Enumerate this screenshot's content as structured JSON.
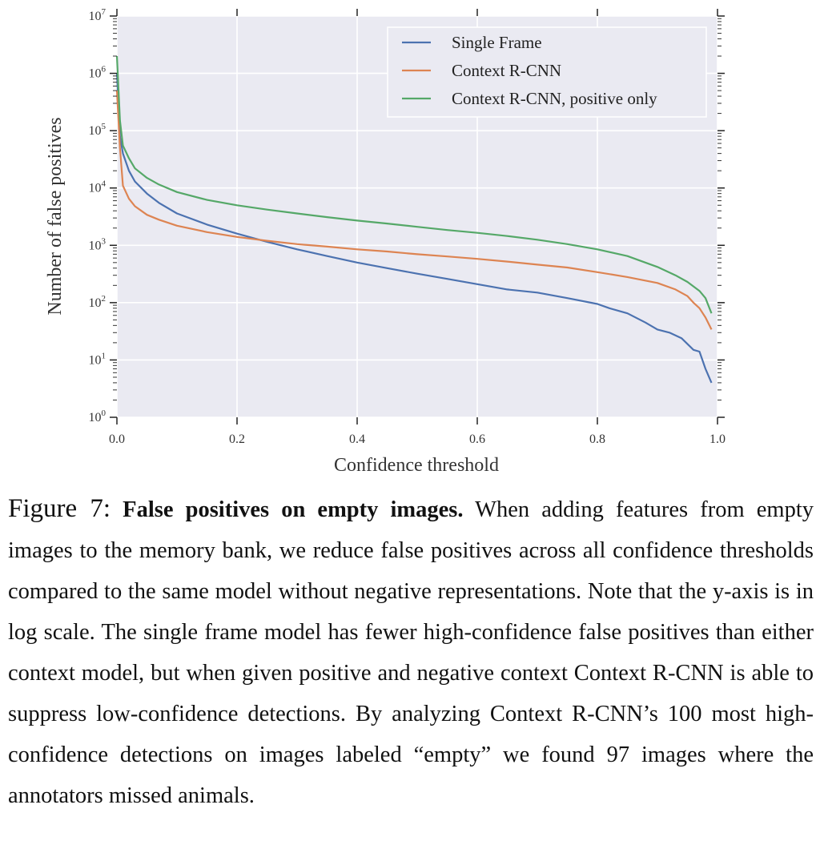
{
  "chart_data": {
    "type": "line",
    "title": "",
    "xlabel": "Confidence threshold",
    "ylabel": "Number of false positives",
    "xlim": [
      0.0,
      1.0
    ],
    "ylim": [
      1,
      10000000
    ],
    "yscale": "log",
    "grid": true,
    "legend_position": "top-right",
    "x_ticks": [
      0.0,
      0.2,
      0.4,
      0.6,
      0.8,
      1.0
    ],
    "x_tick_labels": [
      "0.0",
      "0.2",
      "0.4",
      "0.6",
      "0.8",
      "1.0"
    ],
    "y_ticks": [
      1,
      10,
      100,
      1000,
      10000,
      100000,
      1000000,
      10000000
    ],
    "y_tick_bases": [
      "10",
      "10",
      "10",
      "10",
      "10",
      "10",
      "10",
      "10"
    ],
    "y_tick_exponents": [
      "0",
      "1",
      "2",
      "3",
      "4",
      "5",
      "6",
      "7"
    ],
    "series": [
      {
        "name": "Single Frame",
        "color": "#4c72b0",
        "x": [
          0.0,
          0.005,
          0.01,
          0.02,
          0.03,
          0.05,
          0.07,
          0.1,
          0.15,
          0.2,
          0.25,
          0.3,
          0.35,
          0.4,
          0.45,
          0.5,
          0.55,
          0.6,
          0.65,
          0.7,
          0.75,
          0.8,
          0.82,
          0.85,
          0.88,
          0.9,
          0.92,
          0.94,
          0.96,
          0.97,
          0.98,
          0.99
        ],
        "y": [
          1000000,
          80000,
          40000,
          20000,
          13000,
          8000,
          5500,
          3600,
          2300,
          1600,
          1150,
          850,
          650,
          500,
          400,
          320,
          260,
          210,
          170,
          150,
          120,
          95,
          80,
          65,
          45,
          34,
          30,
          24,
          15,
          14,
          7,
          4
        ]
      },
      {
        "name": "Context R-CNN",
        "color": "#dd8452",
        "x": [
          0.0,
          0.005,
          0.01,
          0.02,
          0.03,
          0.05,
          0.07,
          0.1,
          0.15,
          0.2,
          0.25,
          0.3,
          0.35,
          0.4,
          0.45,
          0.5,
          0.55,
          0.6,
          0.65,
          0.7,
          0.75,
          0.8,
          0.85,
          0.9,
          0.93,
          0.95,
          0.96,
          0.97,
          0.98,
          0.99
        ],
        "y": [
          500000,
          50000,
          11000,
          6500,
          4800,
          3400,
          2800,
          2200,
          1700,
          1400,
          1200,
          1050,
          950,
          850,
          780,
          700,
          640,
          580,
          520,
          460,
          410,
          340,
          280,
          220,
          170,
          130,
          100,
          80,
          55,
          34
        ]
      },
      {
        "name": "Context R-CNN, positive only",
        "color": "#55a868",
        "x": [
          0.0,
          0.005,
          0.01,
          0.02,
          0.03,
          0.05,
          0.07,
          0.1,
          0.15,
          0.2,
          0.25,
          0.3,
          0.35,
          0.4,
          0.45,
          0.5,
          0.55,
          0.6,
          0.65,
          0.7,
          0.75,
          0.8,
          0.85,
          0.9,
          0.93,
          0.95,
          0.97,
          0.98,
          0.99
        ],
        "y": [
          2000000,
          150000,
          55000,
          33000,
          22000,
          15000,
          11500,
          8500,
          6200,
          5000,
          4200,
          3600,
          3100,
          2700,
          2400,
          2100,
          1850,
          1650,
          1450,
          1250,
          1050,
          850,
          650,
          420,
          300,
          230,
          160,
          120,
          65
        ]
      }
    ]
  },
  "caption": {
    "label": "Figure 7:",
    "title": "False positives on empty images.",
    "body": "When adding features from empty images to the memory bank, we reduce false positives across all confidence thresholds compared to the same model without negative representations.  Note that the y-axis is in log scale.  The single frame model has fewer high-confidence false positives than either context model, but when given positive and negative context Context R-CNN is able to suppress low-confidence detections. By analyzing Context R-CNN’s 100 most high-confidence detections on images labeled “empty” we found 97 images where the annotators missed animals."
  },
  "colors": {
    "plot_background": "#eaeaf2",
    "grid": "#ffffff",
    "axis_text": "#333333"
  }
}
